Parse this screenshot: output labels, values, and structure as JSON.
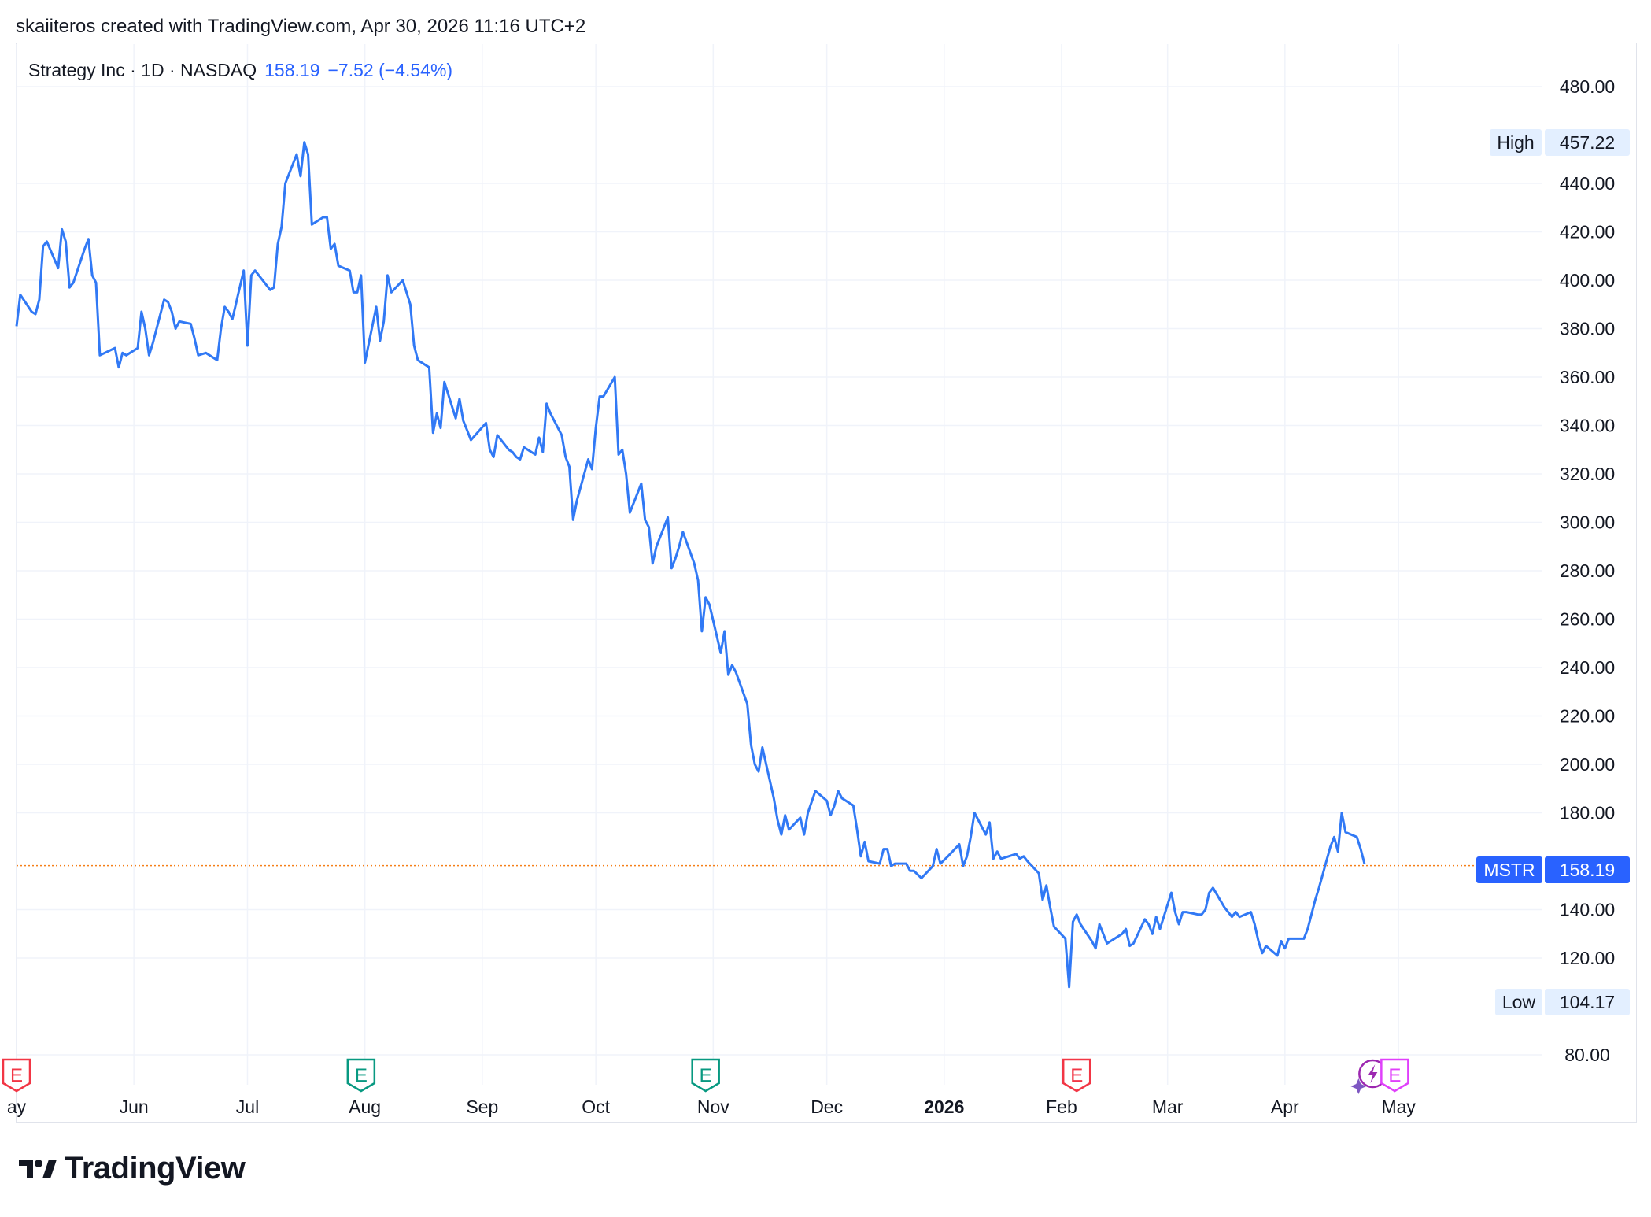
{
  "attribution": "skaiiteros created with TradingView.com, Apr 30, 2026 11:16 UTC+2",
  "legend": {
    "symbol": "Strategy Inc · 1D · NASDAQ",
    "last": "158.19",
    "change": "−7.52 (−4.54%)"
  },
  "branding": {
    "logo_text": "TradingView",
    "logo_icon": "tradingview-logo-icon"
  },
  "colors": {
    "line": "#3179f5",
    "grid": "#f0f3fa",
    "last_price_line": "#f57f17",
    "earnings_red": "#f23645",
    "earnings_green": "#089981",
    "dividend_purple": "#9c27b0"
  },
  "chart_data": {
    "type": "line",
    "y_ticks": [
      "480.00",
      "440.00",
      "420.00",
      "400.00",
      "380.00",
      "360.00",
      "340.00",
      "320.00",
      "300.00",
      "280.00",
      "260.00",
      "240.00",
      "220.00",
      "200.00",
      "180.00",
      "140.00",
      "120.00",
      "80.00"
    ],
    "ylim": [
      80,
      480
    ],
    "x_ticks": [
      {
        "label": "ay",
        "date": "2025-05-01"
      },
      {
        "label": "Jun",
        "date": "2025-06-01"
      },
      {
        "label": "Jul",
        "date": "2025-07-01"
      },
      {
        "label": "Aug",
        "date": "2025-08-01"
      },
      {
        "label": "Sep",
        "date": "2025-09-01"
      },
      {
        "label": "Oct",
        "date": "2025-10-01"
      },
      {
        "label": "Nov",
        "date": "2025-11-01"
      },
      {
        "label": "Dec",
        "date": "2025-12-01"
      },
      {
        "label": "2026",
        "date": "2026-01-01",
        "bold": true
      },
      {
        "label": "Feb",
        "date": "2026-02-01"
      },
      {
        "label": "Mar",
        "date": "2026-03-01"
      },
      {
        "label": "Apr",
        "date": "2026-04-01"
      },
      {
        "label": "May",
        "date": "2026-05-01"
      }
    ],
    "xlim": [
      "2025-05-01",
      "2026-06-08"
    ],
    "grid": true,
    "series": [
      {
        "values": [
          [
            "2025-05-01",
            381
          ],
          [
            "2025-05-02",
            394
          ],
          [
            "2025-05-05",
            387
          ],
          [
            "2025-05-06",
            386
          ],
          [
            "2025-05-07",
            392
          ],
          [
            "2025-05-08",
            414
          ],
          [
            "2025-05-09",
            416
          ],
          [
            "2025-05-12",
            405
          ],
          [
            "2025-05-13",
            421
          ],
          [
            "2025-05-14",
            416
          ],
          [
            "2025-05-15",
            397
          ],
          [
            "2025-05-16",
            399
          ],
          [
            "2025-05-19",
            413
          ],
          [
            "2025-05-20",
            417
          ],
          [
            "2025-05-21",
            402
          ],
          [
            "2025-05-22",
            399
          ],
          [
            "2025-05-23",
            369
          ],
          [
            "2025-05-27",
            372
          ],
          [
            "2025-05-28",
            364
          ],
          [
            "2025-05-29",
            370
          ],
          [
            "2025-05-30",
            369
          ],
          [
            "2025-06-02",
            372
          ],
          [
            "2025-06-03",
            387
          ],
          [
            "2025-06-04",
            380
          ],
          [
            "2025-06-05",
            369
          ],
          [
            "2025-06-06",
            374
          ],
          [
            "2025-06-09",
            392
          ],
          [
            "2025-06-10",
            391
          ],
          [
            "2025-06-11",
            387
          ],
          [
            "2025-06-12",
            380
          ],
          [
            "2025-06-13",
            383
          ],
          [
            "2025-06-16",
            382
          ],
          [
            "2025-06-17",
            376
          ],
          [
            "2025-06-18",
            369
          ],
          [
            "2025-06-20",
            370
          ],
          [
            "2025-06-23",
            367
          ],
          [
            "2025-06-24",
            380
          ],
          [
            "2025-06-25",
            389
          ],
          [
            "2025-06-26",
            387
          ],
          [
            "2025-06-27",
            384
          ],
          [
            "2025-06-30",
            404
          ],
          [
            "2025-07-01",
            373
          ],
          [
            "2025-07-02",
            402
          ],
          [
            "2025-07-03",
            404
          ],
          [
            "2025-07-07",
            396
          ],
          [
            "2025-07-08",
            397
          ],
          [
            "2025-07-09",
            415
          ],
          [
            "2025-07-10",
            422
          ],
          [
            "2025-07-11",
            440
          ],
          [
            "2025-07-14",
            452
          ],
          [
            "2025-07-15",
            443
          ],
          [
            "2025-07-16",
            457
          ],
          [
            "2025-07-17",
            452
          ],
          [
            "2025-07-18",
            423
          ],
          [
            "2025-07-21",
            426
          ],
          [
            "2025-07-22",
            426
          ],
          [
            "2025-07-23",
            413
          ],
          [
            "2025-07-24",
            415
          ],
          [
            "2025-07-25",
            406
          ],
          [
            "2025-07-28",
            404
          ],
          [
            "2025-07-29",
            395
          ],
          [
            "2025-07-30",
            395
          ],
          [
            "2025-07-31",
            402
          ],
          [
            "2025-08-01",
            366
          ],
          [
            "2025-08-04",
            389
          ],
          [
            "2025-08-05",
            375
          ],
          [
            "2025-08-06",
            383
          ],
          [
            "2025-08-07",
            402
          ],
          [
            "2025-08-08",
            395
          ],
          [
            "2025-08-11",
            400
          ],
          [
            "2025-08-12",
            395
          ],
          [
            "2025-08-13",
            390
          ],
          [
            "2025-08-14",
            373
          ],
          [
            "2025-08-15",
            367
          ],
          [
            "2025-08-18",
            364
          ],
          [
            "2025-08-19",
            337
          ],
          [
            "2025-08-20",
            345
          ],
          [
            "2025-08-21",
            339
          ],
          [
            "2025-08-22",
            358
          ],
          [
            "2025-08-25",
            343
          ],
          [
            "2025-08-26",
            351
          ],
          [
            "2025-08-27",
            342
          ],
          [
            "2025-08-28",
            338
          ],
          [
            "2025-08-29",
            334
          ],
          [
            "2025-09-02",
            341
          ],
          [
            "2025-09-03",
            330
          ],
          [
            "2025-09-04",
            327
          ],
          [
            "2025-09-05",
            336
          ],
          [
            "2025-09-08",
            330
          ],
          [
            "2025-09-09",
            329
          ],
          [
            "2025-09-10",
            327
          ],
          [
            "2025-09-11",
            326
          ],
          [
            "2025-09-12",
            331
          ],
          [
            "2025-09-15",
            328
          ],
          [
            "2025-09-16",
            335
          ],
          [
            "2025-09-17",
            329
          ],
          [
            "2025-09-18",
            349
          ],
          [
            "2025-09-19",
            345
          ],
          [
            "2025-09-22",
            336
          ],
          [
            "2025-09-23",
            327
          ],
          [
            "2025-09-24",
            323
          ],
          [
            "2025-09-25",
            301
          ],
          [
            "2025-09-26",
            309
          ],
          [
            "2025-09-29",
            326
          ],
          [
            "2025-09-30",
            322
          ],
          [
            "2025-10-01",
            339
          ],
          [
            "2025-10-02",
            352
          ],
          [
            "2025-10-03",
            352
          ],
          [
            "2025-10-06",
            360
          ],
          [
            "2025-10-07",
            328
          ],
          [
            "2025-10-08",
            330
          ],
          [
            "2025-10-09",
            320
          ],
          [
            "2025-10-10",
            304
          ],
          [
            "2025-10-13",
            316
          ],
          [
            "2025-10-14",
            301
          ],
          [
            "2025-10-15",
            298
          ],
          [
            "2025-10-16",
            283
          ],
          [
            "2025-10-17",
            290
          ],
          [
            "2025-10-20",
            302
          ],
          [
            "2025-10-21",
            281
          ],
          [
            "2025-10-22",
            285
          ],
          [
            "2025-10-23",
            290
          ],
          [
            "2025-10-24",
            296
          ],
          [
            "2025-10-27",
            283
          ],
          [
            "2025-10-28",
            276
          ],
          [
            "2025-10-29",
            255
          ],
          [
            "2025-10-30",
            269
          ],
          [
            "2025-10-31",
            266
          ],
          [
            "2025-11-03",
            246
          ],
          [
            "2025-11-04",
            255
          ],
          [
            "2025-11-05",
            237
          ],
          [
            "2025-11-06",
            241
          ],
          [
            "2025-11-07",
            238
          ],
          [
            "2025-11-10",
            225
          ],
          [
            "2025-11-11",
            208
          ],
          [
            "2025-11-12",
            200
          ],
          [
            "2025-11-13",
            197
          ],
          [
            "2025-11-14",
            207
          ],
          [
            "2025-11-17",
            186
          ],
          [
            "2025-11-18",
            177
          ],
          [
            "2025-11-19",
            171
          ],
          [
            "2025-11-20",
            179
          ],
          [
            "2025-11-21",
            173
          ],
          [
            "2025-11-24",
            178
          ],
          [
            "2025-11-25",
            171
          ],
          [
            "2025-11-26",
            180
          ],
          [
            "2025-11-28",
            189
          ],
          [
            "2025-12-01",
            185
          ],
          [
            "2025-12-02",
            179
          ],
          [
            "2025-12-03",
            183
          ],
          [
            "2025-12-04",
            189
          ],
          [
            "2025-12-05",
            186
          ],
          [
            "2025-12-08",
            183
          ],
          [
            "2025-12-09",
            173
          ],
          [
            "2025-12-10",
            162
          ],
          [
            "2025-12-11",
            168
          ],
          [
            "2025-12-12",
            160
          ],
          [
            "2025-12-15",
            159
          ],
          [
            "2025-12-16",
            165
          ],
          [
            "2025-12-17",
            165
          ],
          [
            "2025-12-18",
            158
          ],
          [
            "2025-12-19",
            159
          ],
          [
            "2025-12-22",
            159
          ],
          [
            "2025-12-23",
            156
          ],
          [
            "2025-12-24",
            156
          ],
          [
            "2025-12-26",
            153
          ],
          [
            "2025-12-29",
            158
          ],
          [
            "2025-12-30",
            165
          ],
          [
            "2025-12-31",
            159
          ],
          [
            "2026-01-02",
            162
          ],
          [
            "2026-01-05",
            167
          ],
          [
            "2026-01-06",
            158
          ],
          [
            "2026-01-07",
            162
          ],
          [
            "2026-01-08",
            170
          ],
          [
            "2026-01-09",
            180
          ],
          [
            "2026-01-12",
            171
          ],
          [
            "2026-01-13",
            176
          ],
          [
            "2026-01-14",
            161
          ],
          [
            "2026-01-15",
            164
          ],
          [
            "2026-01-16",
            161
          ],
          [
            "2026-01-20",
            163
          ],
          [
            "2026-01-21",
            161
          ],
          [
            "2026-01-22",
            162
          ],
          [
            "2026-01-23",
            160
          ],
          [
            "2026-01-26",
            155
          ],
          [
            "2026-01-27",
            144
          ],
          [
            "2026-01-28",
            150
          ],
          [
            "2026-01-29",
            141
          ],
          [
            "2026-01-30",
            133
          ],
          [
            "2026-02-02",
            128
          ],
          [
            "2026-02-03",
            108
          ],
          [
            "2026-02-04",
            135
          ],
          [
            "2026-02-05",
            138
          ],
          [
            "2026-02-06",
            134
          ],
          [
            "2026-02-09",
            127
          ],
          [
            "2026-02-10",
            124
          ],
          [
            "2026-02-11",
            134
          ],
          [
            "2026-02-12",
            130
          ],
          [
            "2026-02-13",
            126
          ],
          [
            "2026-02-17",
            130
          ],
          [
            "2026-02-18",
            132
          ],
          [
            "2026-02-19",
            125
          ],
          [
            "2026-02-20",
            126
          ],
          [
            "2026-02-23",
            136
          ],
          [
            "2026-02-24",
            134
          ],
          [
            "2026-02-25",
            130
          ],
          [
            "2026-02-26",
            137
          ],
          [
            "2026-02-27",
            132
          ],
          [
            "2026-03-02",
            147
          ],
          [
            "2026-03-03",
            139
          ],
          [
            "2026-03-04",
            134
          ],
          [
            "2026-03-05",
            139
          ],
          [
            "2026-03-06",
            139
          ],
          [
            "2026-03-09",
            138
          ],
          [
            "2026-03-10",
            138
          ],
          [
            "2026-03-11",
            140
          ],
          [
            "2026-03-12",
            147
          ],
          [
            "2026-03-13",
            149
          ],
          [
            "2026-03-16",
            141
          ],
          [
            "2026-03-17",
            139
          ],
          [
            "2026-03-18",
            137
          ],
          [
            "2026-03-19",
            139
          ],
          [
            "2026-03-20",
            137
          ],
          [
            "2026-03-23",
            139
          ],
          [
            "2026-03-24",
            134
          ],
          [
            "2026-03-25",
            127
          ],
          [
            "2026-03-26",
            122
          ],
          [
            "2026-03-27",
            125
          ],
          [
            "2026-03-30",
            121
          ],
          [
            "2026-03-31",
            127
          ],
          [
            "2026-04-01",
            124
          ],
          [
            "2026-04-02",
            128
          ],
          [
            "2026-04-03",
            128
          ],
          [
            "2026-04-06",
            128
          ],
          [
            "2026-04-07",
            132
          ],
          [
            "2026-04-08",
            138
          ],
          [
            "2026-04-09",
            144
          ],
          [
            "2026-04-10",
            149
          ],
          [
            "2026-04-13",
            166
          ],
          [
            "2026-04-14",
            170
          ],
          [
            "2026-04-15",
            164
          ],
          [
            "2026-04-16",
            180
          ],
          [
            "2026-04-17",
            172
          ],
          [
            "2026-04-20",
            170
          ],
          [
            "2026-04-21",
            165
          ],
          [
            "2026-04-22",
            159
          ]
        ]
      }
    ],
    "last_price": 158.19,
    "badges": {
      "symbol_label": "MSTR",
      "last_value": "158.19",
      "high_label": "High",
      "high_value": "457.22",
      "low_label": "Low",
      "low_value": "104.17"
    },
    "events": [
      {
        "date": "2025-05-01",
        "type": "earnings-miss",
        "label": "E"
      },
      {
        "date": "2025-07-31",
        "type": "earnings-beat",
        "label": "E"
      },
      {
        "date": "2025-10-30",
        "type": "earnings-beat",
        "label": "E"
      },
      {
        "date": "2026-02-05",
        "type": "earnings-miss",
        "label": "E"
      },
      {
        "date": "2026-04-30",
        "type": "earnings-upcoming",
        "label": "E"
      }
    ]
  }
}
